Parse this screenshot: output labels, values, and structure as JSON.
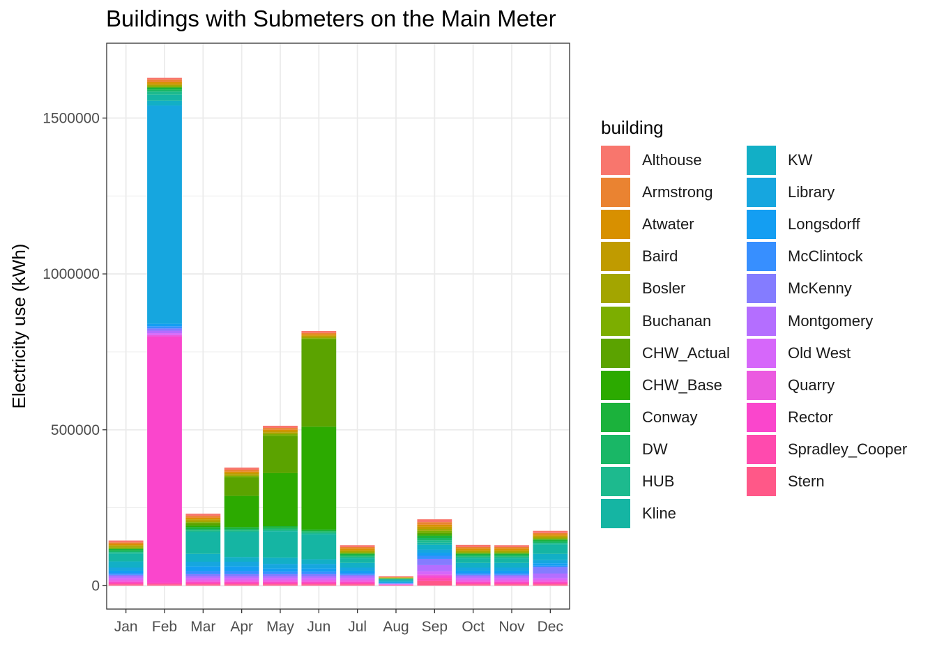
{
  "chart_data": {
    "type": "bar",
    "stacked": true,
    "title": "Buildings with Submeters on the Main Meter",
    "xlabel": "",
    "ylabel": "Electricity use (kWh)",
    "ylim": [
      -75000,
      1740000
    ],
    "yticks": [
      0,
      500000,
      1000000,
      1500000
    ],
    "ytick_labels": [
      "0",
      "500000",
      "1000000",
      "1500000"
    ],
    "grid": true,
    "legend_title": "building",
    "legend_position": "right",
    "categories": [
      "Jan",
      "Feb",
      "Mar",
      "Apr",
      "May",
      "Jun",
      "Jul",
      "Aug",
      "Sep",
      "Oct",
      "Nov",
      "Dec"
    ],
    "series": [
      {
        "name": "Althouse",
        "color": "#F8766D",
        "values": [
          6000,
          6000,
          7000,
          7000,
          7000,
          6000,
          6000,
          2000,
          9000,
          7000,
          6000,
          7000
        ]
      },
      {
        "name": "Armstrong",
        "color": "#EA8331",
        "values": [
          5000,
          8000,
          6000,
          6000,
          6000,
          5000,
          5000,
          1000,
          8000,
          5000,
          5000,
          5000
        ]
      },
      {
        "name": "Atwater",
        "color": "#D89000",
        "values": [
          4000,
          5000,
          5000,
          5000,
          5000,
          4000,
          4000,
          1000,
          7000,
          4000,
          4000,
          4000
        ]
      },
      {
        "name": "Baird",
        "color": "#C09B00",
        "values": [
          4000,
          4000,
          4000,
          4000,
          4000,
          4000,
          4000,
          1000,
          7000,
          4000,
          4000,
          4000
        ]
      },
      {
        "name": "Bosler",
        "color": "#A3A500",
        "values": [
          4000,
          4000,
          5000,
          5000,
          5000,
          4000,
          4000,
          1000,
          6000,
          4000,
          4000,
          4000
        ]
      },
      {
        "name": "Buchanan",
        "color": "#7CAE00",
        "values": [
          4000,
          4000,
          4000,
          4000,
          5000,
          4000,
          4000,
          1000,
          6000,
          4000,
          4000,
          4000
        ]
      },
      {
        "name": "CHW_Actual",
        "color": "#5BA300",
        "values": [
          0,
          0,
          7000,
          60000,
          120000,
          280000,
          0,
          0,
          5000,
          0,
          0,
          0
        ]
      },
      {
        "name": "CHW_Base",
        "color": "#2CAA00",
        "values": [
          0,
          0,
          5000,
          100000,
          170000,
          330000,
          0,
          0,
          5000,
          0,
          0,
          0
        ]
      },
      {
        "name": "Conway",
        "color": "#1BB23C",
        "values": [
          5000,
          7000,
          6000,
          6000,
          6000,
          5000,
          5000,
          1000,
          7000,
          5000,
          5000,
          6000
        ]
      },
      {
        "name": "DW",
        "color": "#19B766",
        "values": [
          5000,
          6000,
          5000,
          5000,
          5000,
          5000,
          5000,
          1000,
          7000,
          5000,
          5000,
          5000
        ]
      },
      {
        "name": "HUB",
        "color": "#1DBA8E",
        "values": [
          5000,
          10000,
          5000,
          5000,
          5000,
          5000,
          5000,
          1000,
          8000,
          5000,
          5000,
          5000
        ]
      },
      {
        "name": "Kline",
        "color": "#15B5A3",
        "values": [
          25000,
          20000,
          70000,
          80000,
          85000,
          80000,
          15000,
          3000,
          7000,
          15000,
          15000,
          30000
        ]
      },
      {
        "name": "KW",
        "color": "#12AFC6",
        "values": [
          20000,
          15000,
          25000,
          15000,
          20000,
          15000,
          15000,
          4000,
          15000,
          15000,
          15000,
          20000
        ]
      },
      {
        "name": "Library",
        "color": "#16A6DF",
        "values": [
          10000,
          700000,
          15000,
          15000,
          15000,
          15000,
          10000,
          3000,
          10000,
          10000,
          10000,
          10000
        ]
      },
      {
        "name": "Longsdorff",
        "color": "#149EF2",
        "values": [
          8000,
          8000,
          15000,
          15000,
          10000,
          10000,
          8000,
          2000,
          10000,
          8000,
          8000,
          8000
        ]
      },
      {
        "name": "McClintock",
        "color": "#378FFF",
        "values": [
          5000,
          7000,
          10000,
          10000,
          8000,
          8000,
          5000,
          1000,
          10000,
          5000,
          5000,
          5000
        ]
      },
      {
        "name": "McKenny",
        "color": "#847CFF",
        "values": [
          5000,
          7000,
          7000,
          7000,
          7000,
          7000,
          5000,
          1000,
          20000,
          5000,
          5000,
          20000
        ]
      },
      {
        "name": "Montgomery",
        "color": "#B46EFF",
        "values": [
          6000,
          8000,
          6000,
          6000,
          6000,
          6000,
          6000,
          1000,
          20000,
          6000,
          6000,
          15000
        ]
      },
      {
        "name": "Old West",
        "color": "#D667FA",
        "values": [
          6000,
          6000,
          6000,
          6000,
          6000,
          6000,
          6000,
          1000,
          10000,
          6000,
          6000,
          6000
        ]
      },
      {
        "name": "Quarry",
        "color": "#EB5AE0",
        "values": [
          5000,
          5000,
          5000,
          5000,
          5000,
          5000,
          5000,
          1000,
          6000,
          5000,
          5000,
          5000
        ]
      },
      {
        "name": "Rector",
        "color": "#FA46CC",
        "values": [
          4000,
          790000,
          4000,
          4000,
          4000,
          4000,
          4000,
          1000,
          5000,
          4000,
          4000,
          4000
        ]
      },
      {
        "name": "Spradley_Cooper",
        "color": "#FF4AAE",
        "values": [
          4000,
          4000,
          4000,
          4000,
          4000,
          4000,
          4000,
          1000,
          10000,
          4000,
          4000,
          4000
        ]
      },
      {
        "name": "Stern",
        "color": "#FF5888",
        "values": [
          5000,
          5000,
          5000,
          5000,
          5000,
          5000,
          5000,
          1000,
          15000,
          5000,
          5000,
          5000
        ]
      }
    ]
  }
}
